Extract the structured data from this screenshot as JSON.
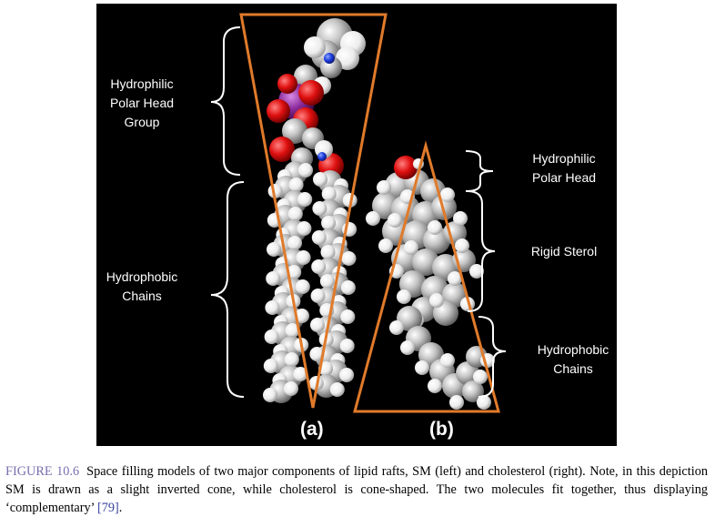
{
  "figure": {
    "labels": {
      "sm_head": "Hydrophilic\nPolar Head\nGroup",
      "sm_chains": "Hydrophobic\nChains",
      "chol_head": "Hydrophilic\nPolar Head",
      "chol_sterol": "Rigid Sterol",
      "chol_chains": "Hydrophobic\nChains"
    },
    "panel_a": "(a)",
    "panel_b": "(b)",
    "colors": {
      "background": "#000000",
      "cone_outline": "#e07a2a",
      "carbon": "#b4b4b4",
      "hydrogen": "#f2f2f2",
      "oxygen": "#e01010",
      "nitrogen": "#2040e0",
      "phosphorus": "#8a2a9a"
    }
  },
  "caption": {
    "label": "FIGURE 10.6",
    "text_before_ref": "Space filling models of two major components of lipid rafts, SM (left) and cholesterol (right). Note, in this depiction SM is drawn as a slight inverted cone, while cholesterol is cone-shaped. The two molecules fit together, thus displaying ‘complementary’ ",
    "ref": "[79]",
    "text_after_ref": "."
  }
}
